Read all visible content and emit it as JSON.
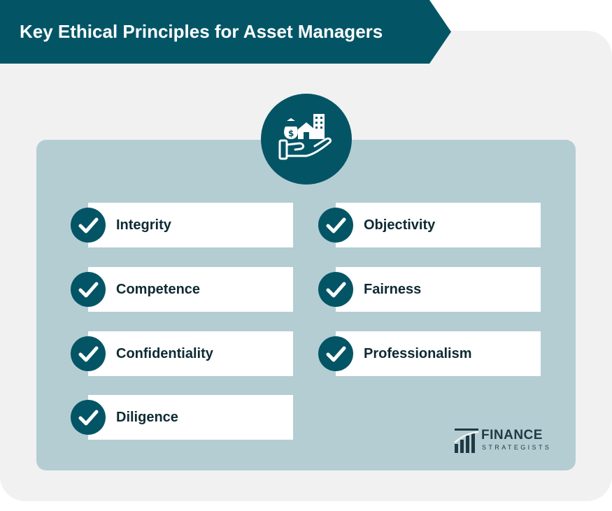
{
  "title": "Key Ethical Principles for Asset Managers",
  "center_icon": "hand-holding-assets-icon",
  "check_icon": "checkmark-icon",
  "colors": {
    "primary": "#035566",
    "panel": "#b4cdd3",
    "card_background": "#f1f1f1",
    "text": "#0e2a33"
  },
  "principles_left": [
    {
      "label": "Integrity"
    },
    {
      "label": "Competence"
    },
    {
      "label": "Confidentiality"
    },
    {
      "label": "Diligence"
    }
  ],
  "principles_right": [
    {
      "label": "Objectivity"
    },
    {
      "label": "Fairness"
    },
    {
      "label": "Professionalism"
    }
  ],
  "logo": {
    "word": "FINANCE",
    "sub": "STRATEGISTS"
  }
}
